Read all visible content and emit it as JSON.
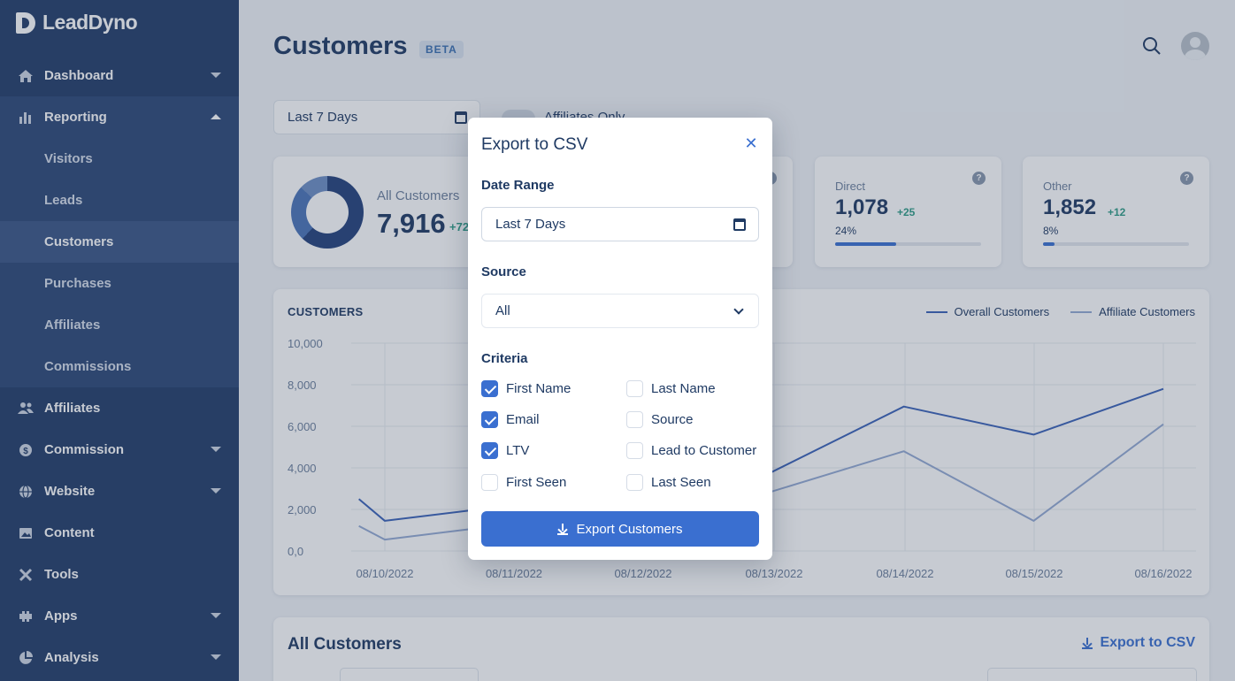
{
  "app": {
    "name": "LeadDyno"
  },
  "sidebar": {
    "items": [
      {
        "label": "Dashboard",
        "icon": "home-icon",
        "expandable": true
      },
      {
        "label": "Reporting",
        "icon": "bar-chart-icon",
        "expandable": true,
        "expanded": true,
        "children": [
          {
            "label": "Visitors"
          },
          {
            "label": "Leads"
          },
          {
            "label": "Customers",
            "active": true
          },
          {
            "label": "Purchases"
          },
          {
            "label": "Affiliates"
          },
          {
            "label": "Commissions"
          }
        ]
      },
      {
        "label": "Affiliates",
        "icon": "users-icon",
        "expandable": false
      },
      {
        "label": "Commission",
        "icon": "dollar-icon",
        "expandable": true
      },
      {
        "label": "Website",
        "icon": "globe-icon",
        "expandable": true
      },
      {
        "label": "Content",
        "icon": "image-icon",
        "expandable": false
      },
      {
        "label": "Tools",
        "icon": "tools-icon",
        "expandable": false
      },
      {
        "label": "Apps",
        "icon": "puzzle-icon",
        "expandable": true
      },
      {
        "label": "Analysis",
        "icon": "pie-chart-icon",
        "expandable": true
      }
    ]
  },
  "header": {
    "title": "Customers",
    "badge": "BETA"
  },
  "filters": {
    "date_range": "Last 7 Days",
    "affiliates_only_label": "Affiliates Only"
  },
  "stats": {
    "all": {
      "label": "All Customers",
      "value": "7,916",
      "delta": "+72"
    },
    "direct": {
      "label": "Direct",
      "value": "1,078",
      "delta": "+25",
      "percent": "24%",
      "fill": 0.42
    },
    "other": {
      "label": "Other",
      "value": "1,852",
      "delta": "+12",
      "percent": "8%",
      "fill": 0.08
    }
  },
  "chart": {
    "title": "CUSTOMERS",
    "legend": [
      "Overall Customers",
      "Affiliate Customers"
    ]
  },
  "chart_data": {
    "type": "line",
    "title": "CUSTOMERS",
    "x": [
      "08/10/2022",
      "08/11/2022",
      "08/12/2022",
      "08/13/2022",
      "08/14/2022",
      "08/15/2022",
      "08/16/2022"
    ],
    "x_numeric": [
      0,
      1,
      2,
      3,
      4,
      5,
      6
    ],
    "ytick_labels": [
      "0,0",
      "2,000",
      "4,000",
      "6,000",
      "8,000",
      "10,000"
    ],
    "ylim": [
      0,
      10000
    ],
    "grid": true,
    "legend_position": "top-right",
    "series": [
      {
        "name": "Overall Customers",
        "color": "#3a62b8",
        "points": [
          [
            -0.2,
            2500
          ],
          [
            0,
            1450
          ],
          [
            2.95,
            3700
          ],
          [
            4.0,
            6950
          ],
          [
            5.0,
            5600
          ],
          [
            6.0,
            7800
          ]
        ]
      },
      {
        "name": "Affiliate Customers",
        "color": "#93a9d3",
        "points": [
          [
            -0.2,
            1200
          ],
          [
            0,
            550
          ],
          [
            2.95,
            2800
          ],
          [
            4.0,
            4800
          ],
          [
            5.0,
            1450
          ],
          [
            6.0,
            6100
          ]
        ]
      }
    ]
  },
  "table": {
    "title": "All Customers",
    "export_label": "Export to CSV"
  },
  "modal": {
    "title": "Export to CSV",
    "date_range_label": "Date Range",
    "date_range_value": "Last 7 Days",
    "source_label": "Source",
    "source_value": "All",
    "criteria_label": "Criteria",
    "criteria": [
      {
        "label": "First Name",
        "checked": true
      },
      {
        "label": "Last Name",
        "checked": false
      },
      {
        "label": "Email",
        "checked": true
      },
      {
        "label": "Source",
        "checked": false
      },
      {
        "label": "LTV",
        "checked": true
      },
      {
        "label": "Lead to Customer",
        "checked": false
      },
      {
        "label": "First Seen",
        "checked": false
      },
      {
        "label": "Last Seen",
        "checked": false
      }
    ],
    "export_button": "Export Customers"
  }
}
